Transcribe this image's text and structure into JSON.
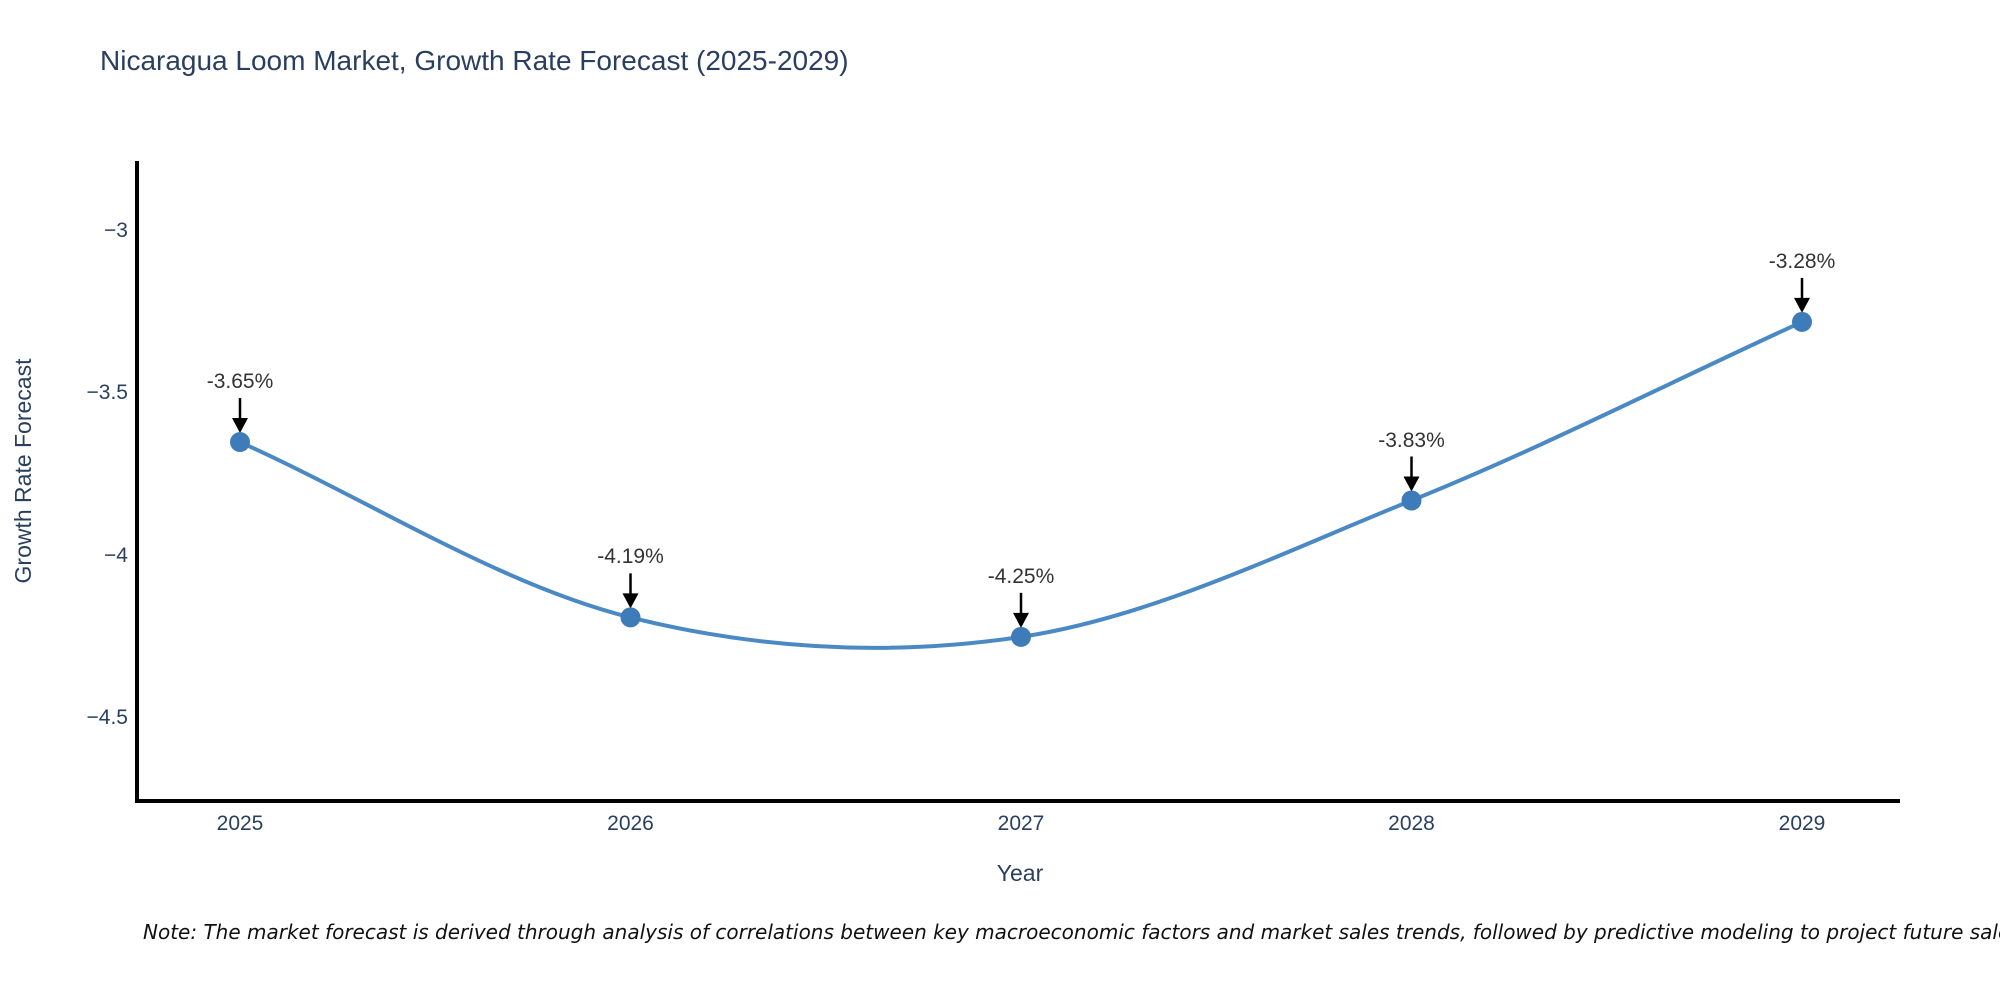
{
  "title": "Nicaragua Loom Market, Growth Rate Forecast (2025-2029)",
  "note": "Note: The market forecast is derived through analysis of correlations between key macroeconomic factors and market sales trends, followed by predictive modeling to project future sales.",
  "colors": {
    "line": "#4A89C4",
    "marker": "#3E7CB9",
    "axis": "#000000",
    "arrow": "#000000",
    "title_text": "#2a3f5f",
    "tick_text": "#2a3f5f",
    "annotation_text": "#333333",
    "background": "#ffffff"
  },
  "chart_data": {
    "type": "line",
    "title": "Nicaragua Loom Market, Growth Rate Forecast (2025-2029)",
    "xlabel": "Year",
    "ylabel": "Growth Rate Forecast",
    "x": [
      2025,
      2026,
      2027,
      2028,
      2029
    ],
    "values": [
      -3.65,
      -4.19,
      -4.25,
      -3.83,
      -3.28
    ],
    "point_labels": [
      "-3.65%",
      "-4.19%",
      "-4.25%",
      "-3.83%",
      "-3.28%"
    ],
    "xtick_labels": [
      "2025",
      "2026",
      "2027",
      "2028",
      "2029"
    ],
    "ytick_values": [
      -3,
      -3.5,
      -4,
      -4.5
    ],
    "ytick_labels": [
      "−3",
      "−3.5",
      "−4",
      "−4.5"
    ],
    "xlim": [
      2024.74,
      2029.28
    ],
    "ylim": [
      -4.78,
      -2.78
    ],
    "line_shape": "spline",
    "markers": true,
    "grid": false,
    "legend": false
  }
}
